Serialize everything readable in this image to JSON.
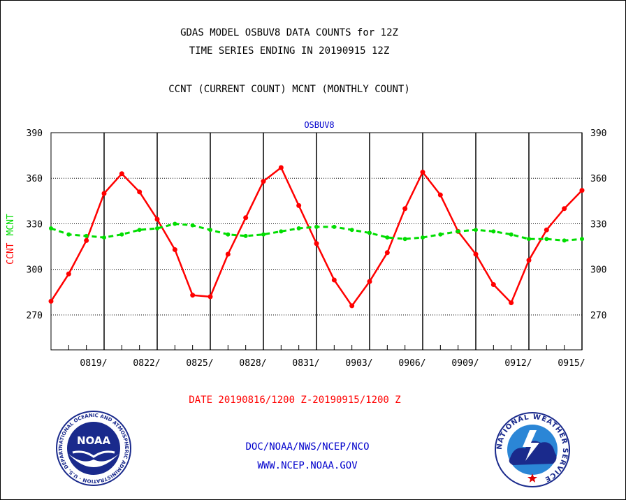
{
  "header": {
    "title_line1": "GDAS MODEL OSBUV8 DATA COUNTS for 12Z",
    "title_line2": "TIME SERIES ENDING IN 20190915 12Z",
    "subtitle": "CCNT (CURRENT COUNT) MCNT (MONTHLY COUNT)"
  },
  "footer": {
    "date_range": "DATE 20190816/1200 Z-20190915/1200 Z",
    "org": "DOC/NOAA/NWS/NCEP/NCO",
    "url": "WWW.NCEP.NOAA.GOV"
  },
  "logos": {
    "left": {
      "icon": "noaa-logo-icon",
      "text": "NOAA",
      "ring_text": "NATIONAL OCEANIC AND ATMOSPHERIC ADMINISTRATION · U.S. DEPARTMENT OF COMMERCE"
    },
    "right": {
      "icon": "nws-logo-icon",
      "ring_text": "NATIONAL WEATHER SERVICE"
    }
  },
  "chart_data": {
    "type": "line",
    "title": "OSBUV8",
    "ylabel_parts": [
      {
        "text": "CCNT",
        "color": "#ff0000"
      },
      {
        "text": "MCNT",
        "color": "#00dd00"
      }
    ],
    "ylim": [
      247,
      390
    ],
    "yticks": [
      270,
      300,
      330,
      360,
      390
    ],
    "grid": true,
    "x_range": [
      0,
      30
    ],
    "xticks": [
      {
        "x": 3,
        "label": "0819/"
      },
      {
        "x": 6,
        "label": "0822/"
      },
      {
        "x": 9,
        "label": "0825/"
      },
      {
        "x": 12,
        "label": "0828/"
      },
      {
        "x": 15,
        "label": "0831/"
      },
      {
        "x": 18,
        "label": "0903/"
      },
      {
        "x": 21,
        "label": "0906/"
      },
      {
        "x": 24,
        "label": "0909/"
      },
      {
        "x": 27,
        "label": "0912/"
      },
      {
        "x": 30,
        "label": "0915/"
      }
    ],
    "series": [
      {
        "name": "CCNT",
        "color": "#ff0000",
        "style": "solid",
        "x": [
          0,
          1,
          2,
          3,
          4,
          5,
          6,
          7,
          8,
          9,
          10,
          11,
          12,
          13,
          14,
          15,
          16,
          17,
          18,
          19,
          20,
          21,
          22,
          23,
          24,
          25,
          26,
          27,
          28,
          29,
          30
        ],
        "values": [
          279,
          297,
          319,
          350,
          363,
          351,
          333,
          313,
          283,
          282,
          310,
          334,
          358,
          367,
          342,
          317,
          293,
          276,
          292,
          311,
          340,
          364,
          349,
          325,
          310,
          290,
          278,
          306,
          326,
          340,
          352
        ]
      },
      {
        "name": "MCNT",
        "color": "#00dd00",
        "style": "dashed",
        "x": [
          0,
          1,
          2,
          3,
          4,
          5,
          6,
          7,
          8,
          9,
          10,
          11,
          12,
          13,
          14,
          15,
          16,
          17,
          18,
          19,
          20,
          21,
          22,
          23,
          24,
          25,
          26,
          27,
          28,
          29,
          30
        ],
        "values": [
          327,
          323,
          322,
          321,
          323,
          326,
          327,
          330,
          329,
          326,
          323,
          322,
          323,
          325,
          327,
          328,
          328,
          326,
          324,
          321,
          320,
          321,
          323,
          325,
          326,
          325,
          323,
          320,
          320,
          319,
          320
        ]
      }
    ]
  }
}
